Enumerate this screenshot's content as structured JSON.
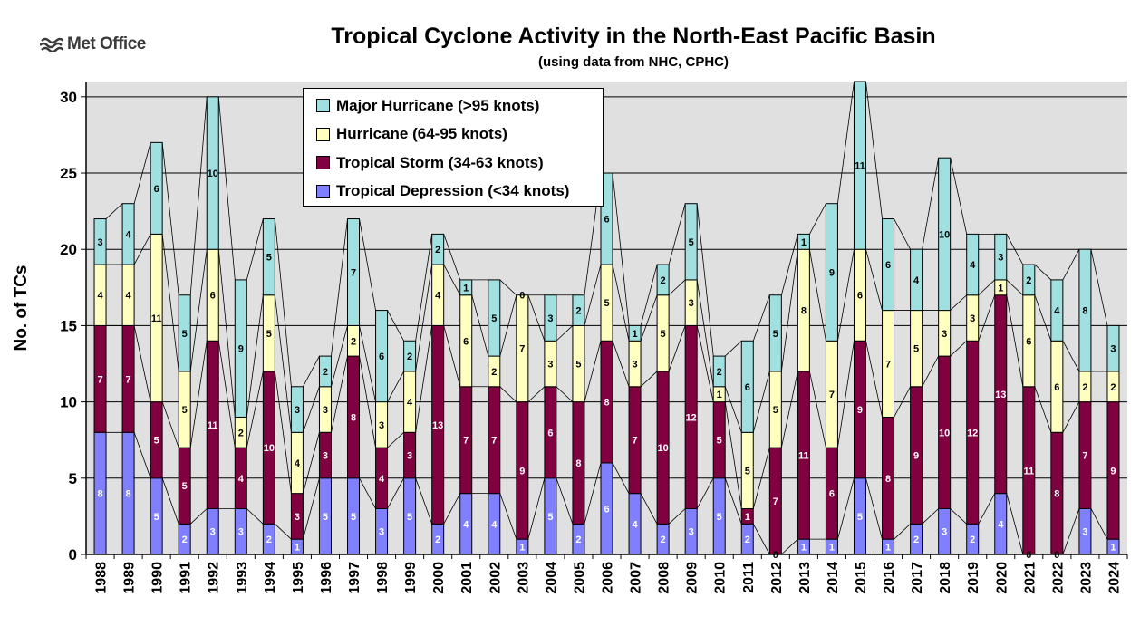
{
  "branding": {
    "logo_text": "Met Office",
    "logo_icon": "met-office-waves-icon"
  },
  "colors": {
    "td": "#8080ff",
    "ts": "#800040",
    "hu": "#ffffc0",
    "mh": "#a0e0e0",
    "plot_bg": "#e0e0e0"
  },
  "chart_data": {
    "type": "bar",
    "stacked": true,
    "title": "Tropical Cyclone Activity in the North-East Pacific Basin",
    "subtitle": "(using data from NHC, CPHC)",
    "xlabel": "",
    "ylabel": "No. of TCs",
    "ylim": [
      0,
      31
    ],
    "yticks": [
      0,
      5,
      10,
      15,
      20,
      25,
      30
    ],
    "grid": true,
    "legend_position": "top-left",
    "categories": [
      "1988",
      "1989",
      "1990",
      "1991",
      "1992",
      "1993",
      "1994",
      "1995",
      "1996",
      "1997",
      "1998",
      "1999",
      "2000",
      "2001",
      "2002",
      "2003",
      "2004",
      "2005",
      "2006",
      "2007",
      "2008",
      "2009",
      "2010",
      "2011",
      "2012",
      "2013",
      "2014",
      "2015",
      "2016",
      "2017",
      "2018",
      "2019",
      "2020",
      "2021",
      "2022",
      "2023",
      "2024"
    ],
    "series": [
      {
        "name": "Tropical Depression (<34 knots)",
        "color": "#8080ff",
        "label_color": "#ffffff",
        "values": [
          8,
          8,
          5,
          2,
          3,
          3,
          2,
          1,
          5,
          5,
          3,
          5,
          2,
          4,
          4,
          1,
          5,
          2,
          6,
          4,
          2,
          3,
          5,
          2,
          0,
          1,
          1,
          5,
          1,
          2,
          3,
          2,
          4,
          0,
          0,
          3,
          1
        ]
      },
      {
        "name": "Tropical Storm (34-63 knots)",
        "color": "#800040",
        "label_color": "#ffffff",
        "values": [
          7,
          7,
          5,
          5,
          11,
          4,
          10,
          3,
          3,
          8,
          4,
          3,
          13,
          7,
          7,
          9,
          6,
          8,
          8,
          7,
          10,
          12,
          5,
          1,
          7,
          11,
          6,
          9,
          8,
          9,
          10,
          12,
          13,
          11,
          8,
          7,
          9
        ]
      },
      {
        "name": "Hurricane (64-95 knots)",
        "color": "#ffffc0",
        "label_color": "#000000",
        "values": [
          4,
          4,
          11,
          5,
          6,
          2,
          5,
          4,
          3,
          2,
          3,
          4,
          4,
          6,
          2,
          7,
          3,
          5,
          5,
          3,
          5,
          3,
          1,
          5,
          5,
          8,
          7,
          6,
          7,
          5,
          3,
          3,
          1,
          6,
          6,
          2,
          2
        ]
      },
      {
        "name": "Major Hurricane (>95 knots)",
        "color": "#a0e0e0",
        "label_color": "#000000",
        "values": [
          3,
          4,
          6,
          5,
          10,
          9,
          5,
          3,
          2,
          7,
          6,
          2,
          2,
          1,
          5,
          0,
          3,
          2,
          6,
          1,
          2,
          5,
          2,
          6,
          5,
          1,
          9,
          11,
          6,
          4,
          10,
          4,
          3,
          2,
          4,
          8,
          3
        ]
      }
    ],
    "legend_order": [
      "Major Hurricane (>95 knots)",
      "Hurricane (64-95 knots)",
      "Tropical Storm (34-63 knots)",
      "Tropical Depression (<34 knots)"
    ]
  }
}
